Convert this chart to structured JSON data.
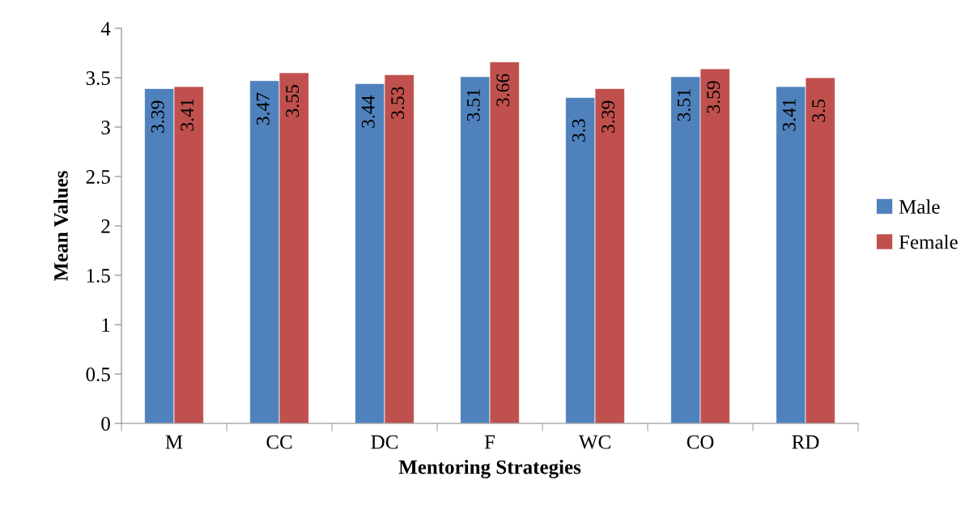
{
  "chart_data": {
    "type": "bar",
    "xlabel": "Mentoring Strategies",
    "ylabel": "Mean Values",
    "categories": [
      "M",
      "CC",
      "DC",
      "F",
      "WC",
      "CO",
      "RD"
    ],
    "series": [
      {
        "name": "Male",
        "color": "#4f81bd",
        "values": [
          3.39,
          3.47,
          3.44,
          3.51,
          3.3,
          3.51,
          3.41
        ]
      },
      {
        "name": "Female",
        "color": "#c0504d",
        "values": [
          3.41,
          3.55,
          3.53,
          3.66,
          3.39,
          3.59,
          3.5
        ]
      }
    ],
    "ylim": [
      0,
      4
    ],
    "yticks": [
      0,
      0.5,
      1,
      1.5,
      2,
      2.5,
      3,
      3.5,
      4
    ],
    "data_labels": true,
    "grid": false,
    "legend": "right"
  }
}
